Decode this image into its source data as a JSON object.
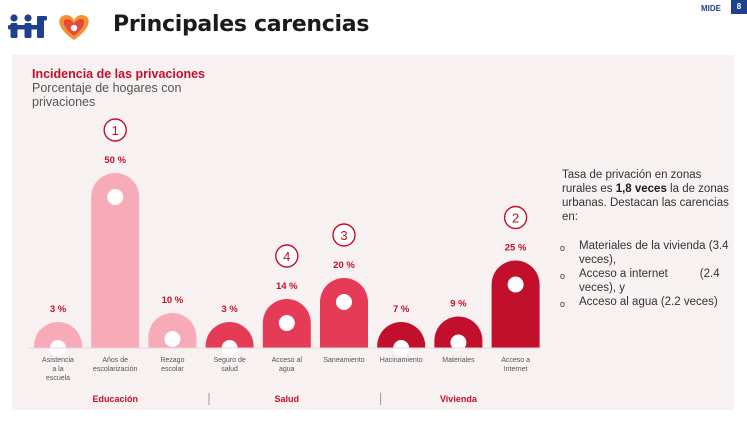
{
  "header": {
    "title": "Principales carencias",
    "brand": "MIDE",
    "page_number": "8"
  },
  "summary": {
    "text_before": "Tasa de privación en zonas rurales es ",
    "highlight": "1,8 veces",
    "text_after": " la de zonas urbanas. Destacan las carencias en:",
    "bullets": [
      "Materiales de la vivienda (3.4 veces),",
      "Acceso a internet          (2.4 veces), y",
      "Acceso al agua (2.2 veces)"
    ],
    "bullet_marker": "o"
  },
  "colors": {
    "light_pink": "#f7aab7",
    "light_pink_dark": "#f28a9c",
    "mid_red": "#e63b56",
    "dark_red": "#c20f2b",
    "group_label": "#c20f2b"
  },
  "chart_data": {
    "type": "bar",
    "title": "Incidencia de las privaciones",
    "subtitle": "Porcentaje de hogares con privaciones",
    "unit": "%",
    "ylim": [
      0,
      50
    ],
    "grid": false,
    "categories": [
      "Asistencia a la escuela",
      "Años de escolarización",
      "Rezago escolar",
      "Seguro de salud",
      "Acceso al agua",
      "Saneamiento",
      "Hacinamiento",
      "Materiales",
      "Acceso a Internet"
    ],
    "values": [
      3,
      50,
      10,
      3,
      14,
      20,
      7,
      9,
      25
    ],
    "value_labels": [
      "3 %",
      "50 %",
      "10 %",
      "3 %",
      "14 %",
      "20 %",
      "7 %",
      "9 %",
      "25 %"
    ],
    "groups": [
      {
        "name": "Educación",
        "members": [
          0,
          1,
          2
        ]
      },
      {
        "name": "Salud",
        "members": [
          3,
          4,
          5
        ]
      },
      {
        "name": "Vivienda",
        "members": [
          6,
          7,
          8
        ]
      }
    ],
    "rank_markers": [
      {
        "category_index": 1,
        "label": "1"
      },
      {
        "category_index": 8,
        "label": "2"
      },
      {
        "category_index": 5,
        "label": "3"
      },
      {
        "category_index": 4,
        "label": "4"
      }
    ]
  }
}
